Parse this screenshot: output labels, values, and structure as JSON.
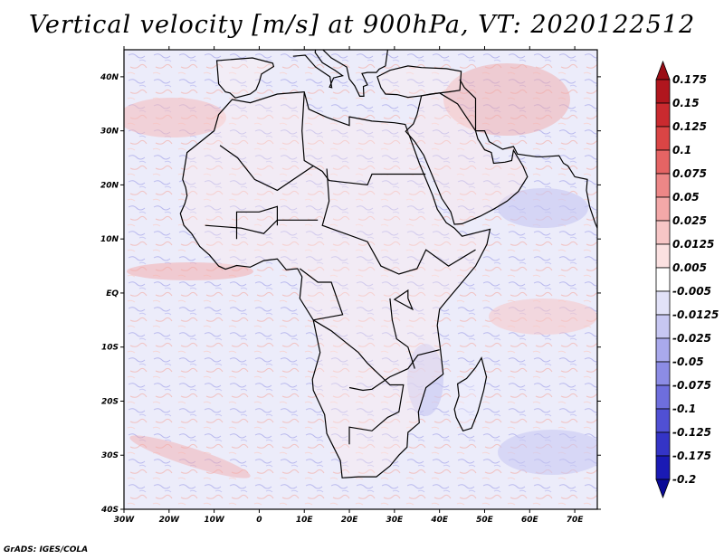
{
  "title": "Vertical velocity [m/s] at 900hPa, VT: 2020122512",
  "footer": "GrADS: IGES/COLA",
  "map": {
    "variable": "Vertical velocity",
    "units": "m/s",
    "level": "900hPa",
    "valid_time": "2020122512",
    "lat_range": [
      -40,
      45
    ],
    "lon_range": [
      -30,
      75
    ],
    "lat_labels": [
      "40N",
      "30N",
      "20N",
      "10N",
      "EQ",
      "10S",
      "20S",
      "30S",
      "40S"
    ],
    "lon_labels": [
      "30W",
      "20W",
      "10W",
      "0",
      "10E",
      "20E",
      "30E",
      "40E",
      "50E",
      "60E",
      "70E"
    ]
  },
  "colorbar": {
    "labels": [
      "0.175",
      "0.15",
      "0.125",
      "0.1",
      "0.075",
      "0.05",
      "0.025",
      "0.0125",
      "0.005",
      "-0.005",
      "-0.0125",
      "-0.025",
      "-0.05",
      "-0.075",
      "-0.1",
      "-0.125",
      "-0.175",
      "-0.2"
    ],
    "colors": [
      "#b0161e",
      "#c92a2f",
      "#da4545",
      "#e56464",
      "#ed8787",
      "#f3a8a8",
      "#f7c6c6",
      "#fbe1e1",
      "#ffffff",
      "#e2e2f8",
      "#c7c7f2",
      "#a9a9ec",
      "#8c8ce5",
      "#6e6edd",
      "#5050d4",
      "#3434c6",
      "#1a1ab4"
    ],
    "top_arrow_color": "#9a0e16",
    "bottom_arrow_color": "#0a0a96"
  }
}
